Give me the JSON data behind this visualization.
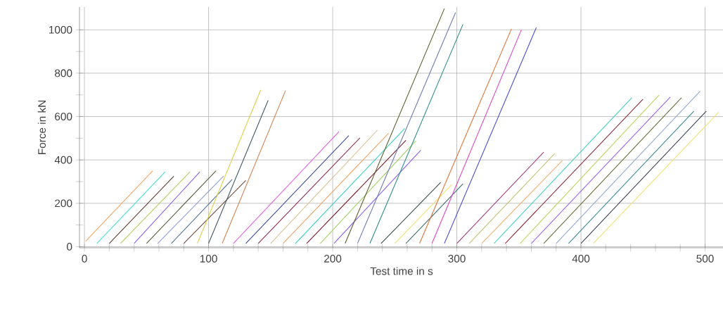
{
  "chart_data": {
    "type": "line",
    "xlabel": "Test time in s",
    "ylabel": "Force in kN",
    "xlim": [
      -4,
      515
    ],
    "ylim": [
      -5,
      1105
    ],
    "xticks": [
      0,
      {
        "value": 20,
        "label": null
      },
      {
        "value": 40,
        "label": null
      },
      {
        "value": 60,
        "label": null
      },
      {
        "value": 80,
        "label": null
      },
      100,
      {
        "value": 120,
        "label": null
      },
      {
        "value": 140,
        "label": null
      },
      {
        "value": 160,
        "label": null
      },
      {
        "value": 180,
        "label": null
      },
      200,
      {
        "value": 220,
        "label": null
      },
      {
        "value": 240,
        "label": null
      },
      {
        "value": 260,
        "label": null
      },
      {
        "value": 280,
        "label": null
      },
      300,
      {
        "value": 320,
        "label": null
      },
      {
        "value": 340,
        "label": null
      },
      {
        "value": 360,
        "label": null
      },
      {
        "value": 380,
        "label": null
      },
      400,
      {
        "value": 420,
        "label": null
      },
      {
        "value": 440,
        "label": null
      },
      {
        "value": 460,
        "label": null
      },
      {
        "value": 480,
        "label": null
      },
      500
    ],
    "yticks": [
      0,
      {
        "value": 100,
        "label": null
      },
      200,
      {
        "value": 300,
        "label": null
      },
      400,
      {
        "value": 500,
        "label": null
      },
      600,
      {
        "value": 700,
        "label": null
      },
      800,
      {
        "value": 900,
        "label": null
      },
      1000
    ],
    "grid": true,
    "marker": "none",
    "line_style": "solid",
    "series": [
      {
        "color": "#f4a460",
        "x": [
          1,
          55
        ],
        "values": [
          25,
          350
        ]
      },
      {
        "color": "#40e0d0",
        "x": [
          10,
          65
        ],
        "values": [
          15,
          345
        ]
      },
      {
        "color": "#5c3a2e",
        "x": [
          20,
          72
        ],
        "values": [
          15,
          325
        ]
      },
      {
        "color": "#b5c95a",
        "x": [
          29,
          85
        ],
        "values": [
          15,
          345
        ]
      },
      {
        "color": "#8a5cf0",
        "x": [
          40,
          93
        ],
        "values": [
          15,
          345
        ]
      },
      {
        "color": "#5a5a3a",
        "x": [
          50,
          106
        ],
        "values": [
          15,
          350
        ]
      },
      {
        "color": "#8c9ad8",
        "x": [
          59,
          112
        ],
        "values": [
          15,
          325
        ]
      },
      {
        "color": "#4a7090",
        "x": [
          70,
          119
        ],
        "values": [
          15,
          310
        ]
      },
      {
        "color": "#6b4a3a",
        "x": [
          80,
          130
        ],
        "values": [
          15,
          305
        ]
      },
      {
        "color": "#e0d040",
        "x": [
          91,
          142
        ],
        "values": [
          15,
          723
        ]
      },
      {
        "color": "#3f5560",
        "x": [
          100,
          148
        ],
        "values": [
          15,
          675
        ]
      },
      {
        "color": "#d2804a",
        "x": [
          111,
          162
        ],
        "values": [
          15,
          720
        ]
      },
      {
        "color": "#e060e0",
        "x": [
          120,
          205
        ],
        "values": [
          15,
          530
        ]
      },
      {
        "color": "#3a4a9a",
        "x": [
          130,
          213
        ],
        "values": [
          15,
          512
        ]
      },
      {
        "color": "#8a2a4a",
        "x": [
          140,
          222
        ],
        "values": [
          15,
          502
        ]
      },
      {
        "color": "#d8c090",
        "x": [
          150,
          236
        ],
        "values": [
          15,
          537
        ]
      },
      {
        "color": "#f0a060",
        "x": [
          160,
          245
        ],
        "values": [
          15,
          523
        ]
      },
      {
        "color": "#30d0c0",
        "x": [
          170,
          258
        ],
        "values": [
          15,
          545
        ]
      },
      {
        "color": "#7a1a2a",
        "x": [
          179,
          259
        ],
        "values": [
          15,
          490
        ]
      },
      {
        "color": "#a0d060",
        "x": [
          190,
          267
        ],
        "values": [
          15,
          488
        ]
      },
      {
        "color": "#8a5cf0",
        "x": [
          201,
          271
        ],
        "values": [
          15,
          445
        ]
      },
      {
        "color": "#5a5a2a",
        "x": [
          210,
          290
        ],
        "values": [
          15,
          1098
        ]
      },
      {
        "color": "#6a7ab0",
        "x": [
          220,
          299
        ],
        "values": [
          15,
          1080
        ]
      },
      {
        "color": "#2a8a8a",
        "x": [
          230,
          305
        ],
        "values": [
          15,
          1026
        ]
      },
      {
        "color": "#3a4a4a",
        "x": [
          239,
          287
        ],
        "values": [
          15,
          296
        ]
      },
      {
        "color": "#f0e070",
        "x": [
          250,
          296
        ],
        "values": [
          15,
          287
        ]
      },
      {
        "color": "#3a6a6a",
        "x": [
          259,
          305
        ],
        "values": [
          15,
          290
        ]
      },
      {
        "color": "#e07030",
        "x": [
          270,
          344
        ],
        "values": [
          15,
          1004
        ]
      },
      {
        "color": "#e040c0",
        "x": [
          280,
          352
        ],
        "values": [
          15,
          1000
        ]
      },
      {
        "color": "#4a4ad0",
        "x": [
          290,
          364
        ],
        "values": [
          15,
          1010
        ]
      },
      {
        "color": "#a03a7a",
        "x": [
          300,
          370
        ],
        "values": [
          15,
          436
        ]
      },
      {
        "color": "#c0c070",
        "x": [
          310,
          379
        ],
        "values": [
          15,
          430
        ]
      },
      {
        "color": "#f0b070",
        "x": [
          320,
          385
        ],
        "values": [
          15,
          397
        ]
      },
      {
        "color": "#40d0c0",
        "x": [
          330,
          441
        ],
        "values": [
          15,
          687
        ]
      },
      {
        "color": "#8a2a3a",
        "x": [
          339,
          450
        ],
        "values": [
          15,
          680
        ]
      },
      {
        "color": "#c0d060",
        "x": [
          351,
          463
        ],
        "values": [
          15,
          700
        ]
      },
      {
        "color": "#9a60f0",
        "x": [
          360,
          472
        ],
        "values": [
          15,
          690
        ]
      },
      {
        "color": "#6a6a3a",
        "x": [
          370,
          481
        ],
        "values": [
          15,
          687
        ]
      },
      {
        "color": "#90a8d0",
        "x": [
          380,
          496
        ],
        "values": [
          15,
          717
        ]
      },
      {
        "color": "#3a8a9a",
        "x": [
          390,
          491
        ],
        "values": [
          15,
          625
        ]
      },
      {
        "color": "#3a4050",
        "x": [
          400,
          501
        ],
        "values": [
          15,
          625
        ]
      },
      {
        "color": "#f0e070",
        "x": [
          410,
          511
        ],
        "values": [
          15,
          620
        ]
      }
    ]
  }
}
